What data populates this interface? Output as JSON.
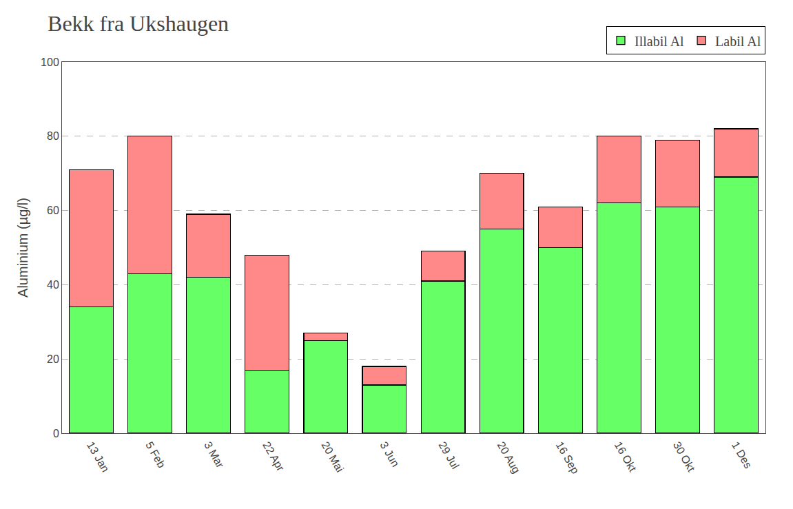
{
  "chart_data": {
    "type": "bar",
    "title": "Bekk fra Ukshaugen",
    "ylabel": "Aluminium (µg/l)",
    "categories": [
      "13 Jan",
      "5 Feb",
      "3 Mar",
      "22 Apr",
      "20 Mai",
      "3 Jun",
      "29 Jul",
      "20 Aug",
      "16 Sep",
      "16 Okt",
      "30 Okt",
      "1 Des"
    ],
    "series": [
      {
        "name": "Illabil Al",
        "color": "#66FF66",
        "values": [
          34,
          43,
          42,
          17,
          25,
          13,
          41,
          55,
          50,
          62,
          61,
          69
        ]
      },
      {
        "name": "Labil Al",
        "color": "#FF8888",
        "values": [
          37,
          37,
          17,
          31,
          2,
          5,
          8,
          15,
          11,
          18,
          18,
          13
        ]
      }
    ],
    "stacked": true,
    "ylim": [
      0,
      100
    ],
    "yticks": [
      0,
      20,
      40,
      60,
      80,
      100
    ],
    "grid": true,
    "legend": "upper right"
  }
}
